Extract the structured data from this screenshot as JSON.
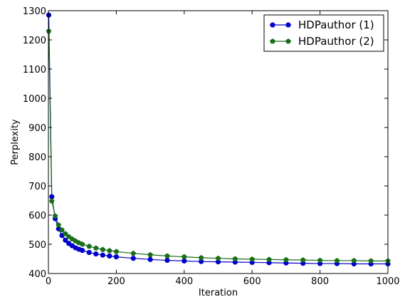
{
  "chart_data": {
    "type": "line",
    "title": "",
    "xlabel": "Iteration",
    "ylabel": "Perplexity",
    "xlim": [
      0,
      1000
    ],
    "ylim": [
      400,
      1300
    ],
    "xticks": [
      0,
      200,
      400,
      600,
      800,
      1000
    ],
    "yticks": [
      400,
      500,
      600,
      700,
      800,
      900,
      1000,
      1100,
      1200,
      1300
    ],
    "xtick_labels": [
      "0",
      "200",
      "400",
      "600",
      "800",
      "1000"
    ],
    "ytick_labels": [
      "400",
      "500",
      "600",
      "700",
      "800",
      "900",
      "1000",
      "1100",
      "1200",
      "1300"
    ],
    "grid": false,
    "legend_position": "top-right",
    "series": [
      {
        "name": "HDPauthor (1)",
        "color": "#0000cc",
        "marker": "circle",
        "x": [
          1,
          10,
          20,
          30,
          40,
          50,
          60,
          70,
          80,
          90,
          100,
          120,
          140,
          160,
          180,
          200,
          250,
          300,
          350,
          400,
          450,
          500,
          550,
          600,
          650,
          700,
          750,
          800,
          850,
          900,
          950,
          1000
        ],
        "y": [
          1285,
          663,
          588,
          553,
          530,
          514,
          503,
          495,
          488,
          483,
          479,
          472,
          467,
          463,
          460,
          457,
          452,
          448,
          445,
          443,
          441,
          440,
          439,
          438,
          437,
          436,
          435,
          434,
          434,
          433,
          433,
          433
        ]
      },
      {
        "name": "HDPauthor (2)",
        "color": "#1a6e1a",
        "marker": "pentagon",
        "x": [
          1,
          10,
          20,
          30,
          40,
          50,
          60,
          70,
          80,
          90,
          100,
          120,
          140,
          160,
          180,
          200,
          250,
          300,
          350,
          400,
          450,
          500,
          550,
          600,
          650,
          700,
          750,
          800,
          850,
          900,
          950,
          1000
        ],
        "y": [
          1230,
          648,
          597,
          566,
          549,
          536,
          526,
          518,
          511,
          505,
          500,
          493,
          487,
          482,
          478,
          475,
          469,
          464,
          460,
          457,
          454,
          452,
          450,
          449,
          448,
          447,
          446,
          445,
          444,
          444,
          443,
          443
        ]
      }
    ]
  }
}
